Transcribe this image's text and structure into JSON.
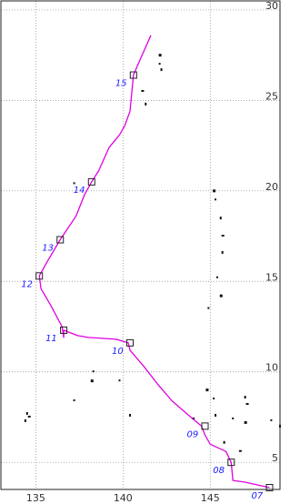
{
  "map": {
    "lon_range": [
      133,
      149
    ],
    "lat_range": [
      3.5,
      30.5
    ],
    "lon_ticks": [
      135,
      140,
      145
    ],
    "lat_ticks": [
      5,
      10,
      15,
      20,
      25,
      30
    ],
    "lon_tick_labels": [
      "135",
      "140",
      "145"
    ],
    "lat_tick_labels": [
      "5",
      "10",
      "15",
      "20",
      "25",
      "30"
    ],
    "track_color": "#e000e0",
    "label_color": "#1a1aff",
    "grid": "dotted"
  },
  "track": [
    [
      148.4,
      3.6
    ],
    [
      147.0,
      3.9
    ],
    [
      146.3,
      4.0
    ],
    [
      146.2,
      5.0
    ],
    [
      145.9,
      5.6
    ],
    [
      145.0,
      6.0
    ],
    [
      144.7,
      6.5
    ],
    [
      144.5,
      7.0
    ],
    [
      144.0,
      7.4
    ],
    [
      143.4,
      7.9
    ],
    [
      142.8,
      8.4
    ],
    [
      142.0,
      9.3
    ],
    [
      141.2,
      10.3
    ],
    [
      140.4,
      11.2
    ],
    [
      140.3,
      11.6
    ],
    [
      139.6,
      11.8
    ],
    [
      138.0,
      11.9
    ],
    [
      137.4,
      12.0
    ],
    [
      136.6,
      12.3
    ],
    [
      136.6,
      11.9
    ],
    [
      136.5,
      12.5
    ],
    [
      135.9,
      13.6
    ],
    [
      135.3,
      14.6
    ],
    [
      135.2,
      15.3
    ],
    [
      135.6,
      16.0
    ],
    [
      136.4,
      17.3
    ],
    [
      137.3,
      18.6
    ],
    [
      137.8,
      19.8
    ],
    [
      138.2,
      20.5
    ],
    [
      138.6,
      21.1
    ],
    [
      139.2,
      22.4
    ],
    [
      139.8,
      23.1
    ],
    [
      140.1,
      23.6
    ],
    [
      140.4,
      24.4
    ],
    [
      140.6,
      26.4
    ],
    [
      141.0,
      27.3
    ],
    [
      141.6,
      28.6
    ]
  ],
  "fixes": [
    {
      "lon": 148.4,
      "lat": 3.6,
      "label": "07"
    },
    {
      "lon": 146.2,
      "lat": 5.0,
      "label": "08"
    },
    {
      "lon": 144.7,
      "lat": 7.0,
      "label": "09"
    },
    {
      "lon": 140.4,
      "lat": 11.6,
      "label": "10"
    },
    {
      "lon": 136.6,
      "lat": 12.3,
      "label": "11"
    },
    {
      "lon": 135.2,
      "lat": 15.3,
      "label": "12"
    },
    {
      "lon": 136.4,
      "lat": 17.3,
      "label": "13"
    },
    {
      "lon": 138.2,
      "lat": 20.5,
      "label": "14"
    },
    {
      "lon": 140.6,
      "lat": 26.4,
      "label": "15"
    }
  ],
  "islands": [
    [
      142.1,
      27.5
    ],
    [
      142.1,
      27.0
    ],
    [
      142.2,
      26.7
    ],
    [
      141.1,
      25.5
    ],
    [
      141.3,
      24.8
    ],
    [
      137.2,
      20.4
    ],
    [
      145.2,
      20.0
    ],
    [
      145.3,
      19.5
    ],
    [
      145.6,
      18.5
    ],
    [
      145.7,
      17.5
    ],
    [
      145.7,
      16.6
    ],
    [
      145.4,
      15.2
    ],
    [
      145.6,
      14.2
    ],
    [
      144.9,
      13.5
    ],
    [
      134.5,
      7.7
    ],
    [
      134.6,
      7.5
    ],
    [
      134.4,
      7.3
    ],
    [
      137.2,
      8.4
    ],
    [
      138.2,
      9.5
    ],
    [
      139.8,
      9.5
    ],
    [
      140.4,
      7.6
    ],
    [
      144.0,
      7.4
    ],
    [
      145.3,
      7.6
    ],
    [
      146.3,
      7.4
    ],
    [
      147.0,
      7.2
    ],
    [
      148.5,
      7.3
    ],
    [
      149.0,
      7.0
    ],
    [
      147.1,
      8.2
    ],
    [
      147.0,
      8.6
    ],
    [
      145.2,
      8.5
    ],
    [
      144.8,
      9.0
    ],
    [
      138.3,
      10.0
    ],
    [
      145.8,
      6.1
    ],
    [
      146.7,
      5.6
    ]
  ]
}
